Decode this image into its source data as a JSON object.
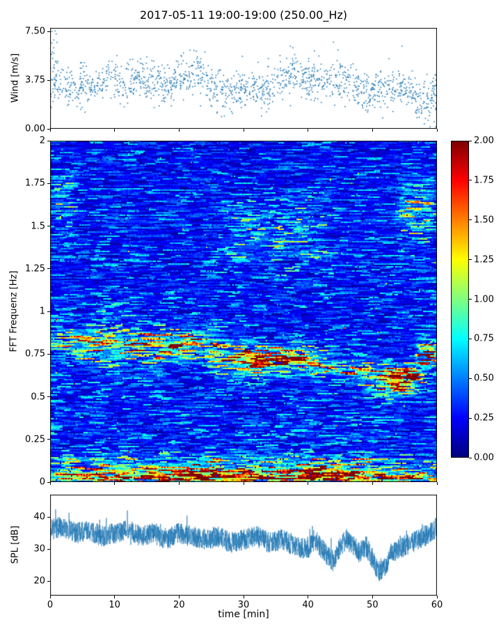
{
  "title": "2017-05-11 19:00-19:00 (250.00_Hz)",
  "accent_color": "#1f77b4",
  "chart_data": [
    {
      "type": "scatter",
      "name": "wind-speed",
      "ylabel": "Wind [m/s]",
      "xlim": [
        0,
        60
      ],
      "ylim": [
        0,
        7.77
      ],
      "yticks": [
        {
          "v": 0,
          "label": "0.00"
        },
        {
          "v": 3.75,
          "label": "3.75"
        },
        {
          "v": 7.5,
          "label": "7.50"
        }
      ],
      "marker_color": "#1f77b4",
      "n_points": 1500,
      "jitter": 0.75,
      "trend": [
        [
          0,
          3.8
        ],
        [
          3,
          3.1
        ],
        [
          6,
          3.2
        ],
        [
          9,
          3.7
        ],
        [
          12,
          3.4
        ],
        [
          14,
          3.9
        ],
        [
          17,
          3.3
        ],
        [
          20,
          3.8
        ],
        [
          22,
          4.3
        ],
        [
          23,
          4.6
        ],
        [
          25,
          3.1
        ],
        [
          28,
          2.9
        ],
        [
          31,
          3.1
        ],
        [
          34,
          3.2
        ],
        [
          36,
          3.9
        ],
        [
          38,
          4.2
        ],
        [
          40,
          3.7
        ],
        [
          43,
          3.4
        ],
        [
          45,
          3.7
        ],
        [
          47,
          3.3
        ],
        [
          49,
          2.6
        ],
        [
          51,
          3.0
        ],
        [
          53,
          3.3
        ],
        [
          55,
          3.1
        ],
        [
          57,
          2.4
        ],
        [
          58,
          2.1
        ],
        [
          60,
          2.6
        ]
      ]
    },
    {
      "type": "heatmap",
      "name": "spectrogram",
      "ylabel": "FFT Frequenz [Hz]",
      "xlim": [
        0,
        60
      ],
      "ylim": [
        0,
        2
      ],
      "yticks": [
        {
          "v": 0,
          "label": "0"
        },
        {
          "v": 0.25,
          "label": "0.25"
        },
        {
          "v": 0.5,
          "label": "0.5"
        },
        {
          "v": 0.75,
          "label": "0.75"
        },
        {
          "v": 1,
          "label": "1"
        },
        {
          "v": 1.25,
          "label": "1.25"
        },
        {
          "v": 1.5,
          "label": "1.5"
        },
        {
          "v": 1.75,
          "label": "1.75"
        },
        {
          "v": 2,
          "label": "2"
        }
      ],
      "colormap": "jet",
      "vmin": 0,
      "vmax": 2,
      "base_level": 0.3,
      "features": [
        {
          "t": [
            0,
            60
          ],
          "f": [
            0.0,
            0.04
          ],
          "amp": 1.7
        },
        {
          "t": [
            0,
            60
          ],
          "f": [
            0.03,
            0.09
          ],
          "amp": 0.75
        },
        {
          "t": [
            0,
            60
          ],
          "f": [
            0.08,
            0.16
          ],
          "amp": 0.35
        },
        {
          "t": [
            20,
            29
          ],
          "f": [
            0.02,
            0.08
          ],
          "amp": 0.9
        },
        {
          "t": [
            37,
            45
          ],
          "f": [
            0.02,
            0.08
          ],
          "amp": 0.9
        },
        {
          "t": [
            0,
            27
          ],
          "f": [
            0.7,
            0.9
          ],
          "amp": 0.55
        },
        {
          "t": [
            18,
            26
          ],
          "f": [
            0.74,
            0.84
          ],
          "amp": 0.35
        },
        {
          "t": [
            26,
            43
          ],
          "f": [
            0.64,
            0.78
          ],
          "amp": 0.75
        },
        {
          "t": [
            30,
            40
          ],
          "f": [
            0.68,
            0.76
          ],
          "amp": 0.9
        },
        {
          "t": [
            42,
            51
          ],
          "f": [
            0.6,
            0.7
          ],
          "amp": 0.45
        },
        {
          "t": [
            49,
            58
          ],
          "f": [
            0.5,
            0.68
          ],
          "amp": 0.7
        },
        {
          "t": [
            52,
            57
          ],
          "f": [
            0.58,
            0.67
          ],
          "amp": 0.9
        },
        {
          "t": [
            57,
            60
          ],
          "f": [
            0.68,
            0.82
          ],
          "amp": 0.9
        },
        {
          "t": [
            26,
            44
          ],
          "f": [
            1.25,
            1.65
          ],
          "amp": 0.22
        },
        {
          "t": [
            54,
            60
          ],
          "f": [
            1.4,
            1.8
          ],
          "amp": 0.3
        },
        {
          "t": [
            0,
            4
          ],
          "f": [
            1.5,
            1.8
          ],
          "amp": 0.22
        },
        {
          "t": [
            8,
            14
          ],
          "f": [
            0.95,
            1.1
          ],
          "amp": 0.12
        }
      ],
      "colorbar": {
        "ticks": [
          {
            "v": 0,
            "label": "0.00"
          },
          {
            "v": 0.25,
            "label": "0.25"
          },
          {
            "v": 0.5,
            "label": "0.50"
          },
          {
            "v": 0.75,
            "label": "0.75"
          },
          {
            "v": 1,
            "label": "1.00"
          },
          {
            "v": 1.25,
            "label": "1.25"
          },
          {
            "v": 1.5,
            "label": "1.50"
          },
          {
            "v": 1.75,
            "label": "1.75"
          },
          {
            "v": 2,
            "label": "2.00"
          }
        ]
      }
    },
    {
      "type": "line",
      "name": "spl",
      "ylabel": "SPL [dB]",
      "xlabel": "time [min]",
      "xlim": [
        0,
        60
      ],
      "ylim": [
        15.5,
        47
      ],
      "yticks": [
        {
          "v": 20,
          "label": "20"
        },
        {
          "v": 30,
          "label": "30"
        },
        {
          "v": 40,
          "label": "40"
        }
      ],
      "xticks": [
        {
          "v": 0,
          "label": "0"
        },
        {
          "v": 10,
          "label": "10"
        },
        {
          "v": 20,
          "label": "20"
        },
        {
          "v": 30,
          "label": "30"
        },
        {
          "v": 40,
          "label": "40"
        },
        {
          "v": 50,
          "label": "50"
        },
        {
          "v": 60,
          "label": "60"
        }
      ],
      "line_color": "#1f77b4",
      "noise": 3.3,
      "trend": [
        [
          0,
          36
        ],
        [
          2,
          37
        ],
        [
          4,
          35
        ],
        [
          6,
          36
        ],
        [
          8,
          34
        ],
        [
          10,
          35
        ],
        [
          12,
          36
        ],
        [
          14,
          34
        ],
        [
          16,
          35
        ],
        [
          18,
          33
        ],
        [
          20,
          35
        ],
        [
          22,
          34
        ],
        [
          24,
          33
        ],
        [
          26,
          34
        ],
        [
          28,
          32
        ],
        [
          30,
          33
        ],
        [
          32,
          34
        ],
        [
          34,
          32
        ],
        [
          36,
          33
        ],
        [
          38,
          31
        ],
        [
          40,
          30
        ],
        [
          41,
          33
        ],
        [
          43,
          28
        ],
        [
          44,
          26
        ],
        [
          45,
          31
        ],
        [
          46,
          33
        ],
        [
          47,
          31
        ],
        [
          48,
          29
        ],
        [
          49,
          31
        ],
        [
          50,
          27
        ],
        [
          51,
          23
        ],
        [
          52,
          25
        ],
        [
          53,
          29
        ],
        [
          54,
          30
        ],
        [
          55,
          31
        ],
        [
          56,
          32
        ],
        [
          57,
          33
        ],
        [
          58,
          34
        ],
        [
          59,
          35
        ],
        [
          60,
          37
        ]
      ]
    }
  ]
}
